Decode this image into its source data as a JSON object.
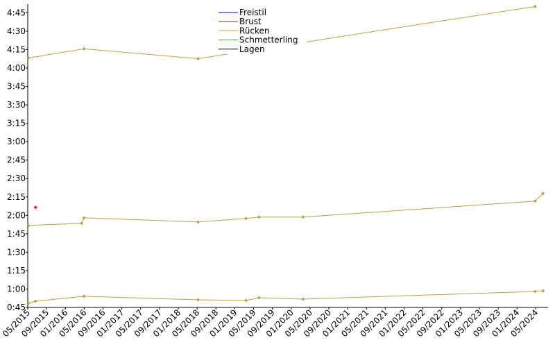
{
  "chart_data": {
    "type": "line",
    "series": [
      {
        "name": "Freistil",
        "color": "#0000ff",
        "segments": []
      },
      {
        "name": "Brust",
        "color": "#ff0000",
        "segments": [
          {
            "x": [
              2015.47
            ],
            "values": [
              126.5
            ]
          }
        ]
      },
      {
        "name": "Rücken",
        "color": "#b8a040",
        "segments": [
          {
            "x": [
              2015.345,
              2016.33,
              2018.35,
              2024.32
            ],
            "values": [
              248.2,
              255.6,
              247.6,
              290.1
            ]
          },
          {
            "x": [
              2015.345,
              2016.29,
              2016.33,
              2018.35,
              2019.2,
              2019.43,
              2020.21,
              2024.32,
              2024.46
            ],
            "values": [
              111.8,
              113.5,
              118.0,
              114.6,
              117.5,
              118.6,
              118.6,
              131.6,
              137.8
            ]
          },
          {
            "x": [
              2015.345,
              2015.47,
              2016.33,
              2018.35,
              2019.2,
              2019.43,
              2020.21,
              2024.32,
              2024.46
            ],
            "values": [
              48.4,
              50.1,
              54.1,
              51.2,
              50.7,
              52.9,
              51.8,
              58.0,
              58.6
            ]
          }
        ]
      },
      {
        "name": "Schmetterling",
        "color": "#00dd00",
        "segments": []
      },
      {
        "name": "Lagen",
        "color": "#000000",
        "segments": []
      }
    ],
    "xlim": [
      2015.333,
      2024.55
    ],
    "ylim": [
      45,
      292
    ],
    "yticks": [
      {
        "value": 45,
        "label": "0:45"
      },
      {
        "value": 60,
        "label": "1:00"
      },
      {
        "value": 75,
        "label": "1:15"
      },
      {
        "value": 90,
        "label": "1:30"
      },
      {
        "value": 105,
        "label": "1:45"
      },
      {
        "value": 120,
        "label": "2:00"
      },
      {
        "value": 135,
        "label": "2:15"
      },
      {
        "value": 150,
        "label": "2:30"
      },
      {
        "value": 165,
        "label": "2:45"
      },
      {
        "value": 180,
        "label": "3:00"
      },
      {
        "value": 195,
        "label": "3:15"
      },
      {
        "value": 210,
        "label": "3:30"
      },
      {
        "value": 225,
        "label": "3:45"
      },
      {
        "value": 240,
        "label": "4:00"
      },
      {
        "value": 255,
        "label": "4:15"
      },
      {
        "value": 270,
        "label": "4:30"
      },
      {
        "value": 285,
        "label": "4:45"
      }
    ],
    "xticks": [
      {
        "value": 2015.333,
        "label": "05/2015"
      },
      {
        "value": 2015.667,
        "label": "09/2015"
      },
      {
        "value": 2016.0,
        "label": "01/2016"
      },
      {
        "value": 2016.333,
        "label": "05/2016"
      },
      {
        "value": 2016.667,
        "label": "09/2016"
      },
      {
        "value": 2017.0,
        "label": "01/2017"
      },
      {
        "value": 2017.333,
        "label": "05/2017"
      },
      {
        "value": 2017.667,
        "label": "09/2017"
      },
      {
        "value": 2018.0,
        "label": "01/2018"
      },
      {
        "value": 2018.333,
        "label": "05/2018"
      },
      {
        "value": 2018.667,
        "label": "09/2018"
      },
      {
        "value": 2019.0,
        "label": "01/2019"
      },
      {
        "value": 2019.333,
        "label": "05/2019"
      },
      {
        "value": 2019.667,
        "label": "09/2019"
      },
      {
        "value": 2020.0,
        "label": "01/2020"
      },
      {
        "value": 2020.333,
        "label": "05/2020"
      },
      {
        "value": 2020.667,
        "label": "09/2020"
      },
      {
        "value": 2021.0,
        "label": "01/2021"
      },
      {
        "value": 2021.333,
        "label": "05/2021"
      },
      {
        "value": 2021.667,
        "label": "09/2021"
      },
      {
        "value": 2022.0,
        "label": "01/2022"
      },
      {
        "value": 2022.333,
        "label": "05/2022"
      },
      {
        "value": 2022.667,
        "label": "09/2022"
      },
      {
        "value": 2023.0,
        "label": "01/2023"
      },
      {
        "value": 2023.333,
        "label": "05/2023"
      },
      {
        "value": 2023.667,
        "label": "09/2023"
      },
      {
        "value": 2024.0,
        "label": "01/2024"
      },
      {
        "value": 2024.333,
        "label": "05/2024"
      }
    ]
  }
}
